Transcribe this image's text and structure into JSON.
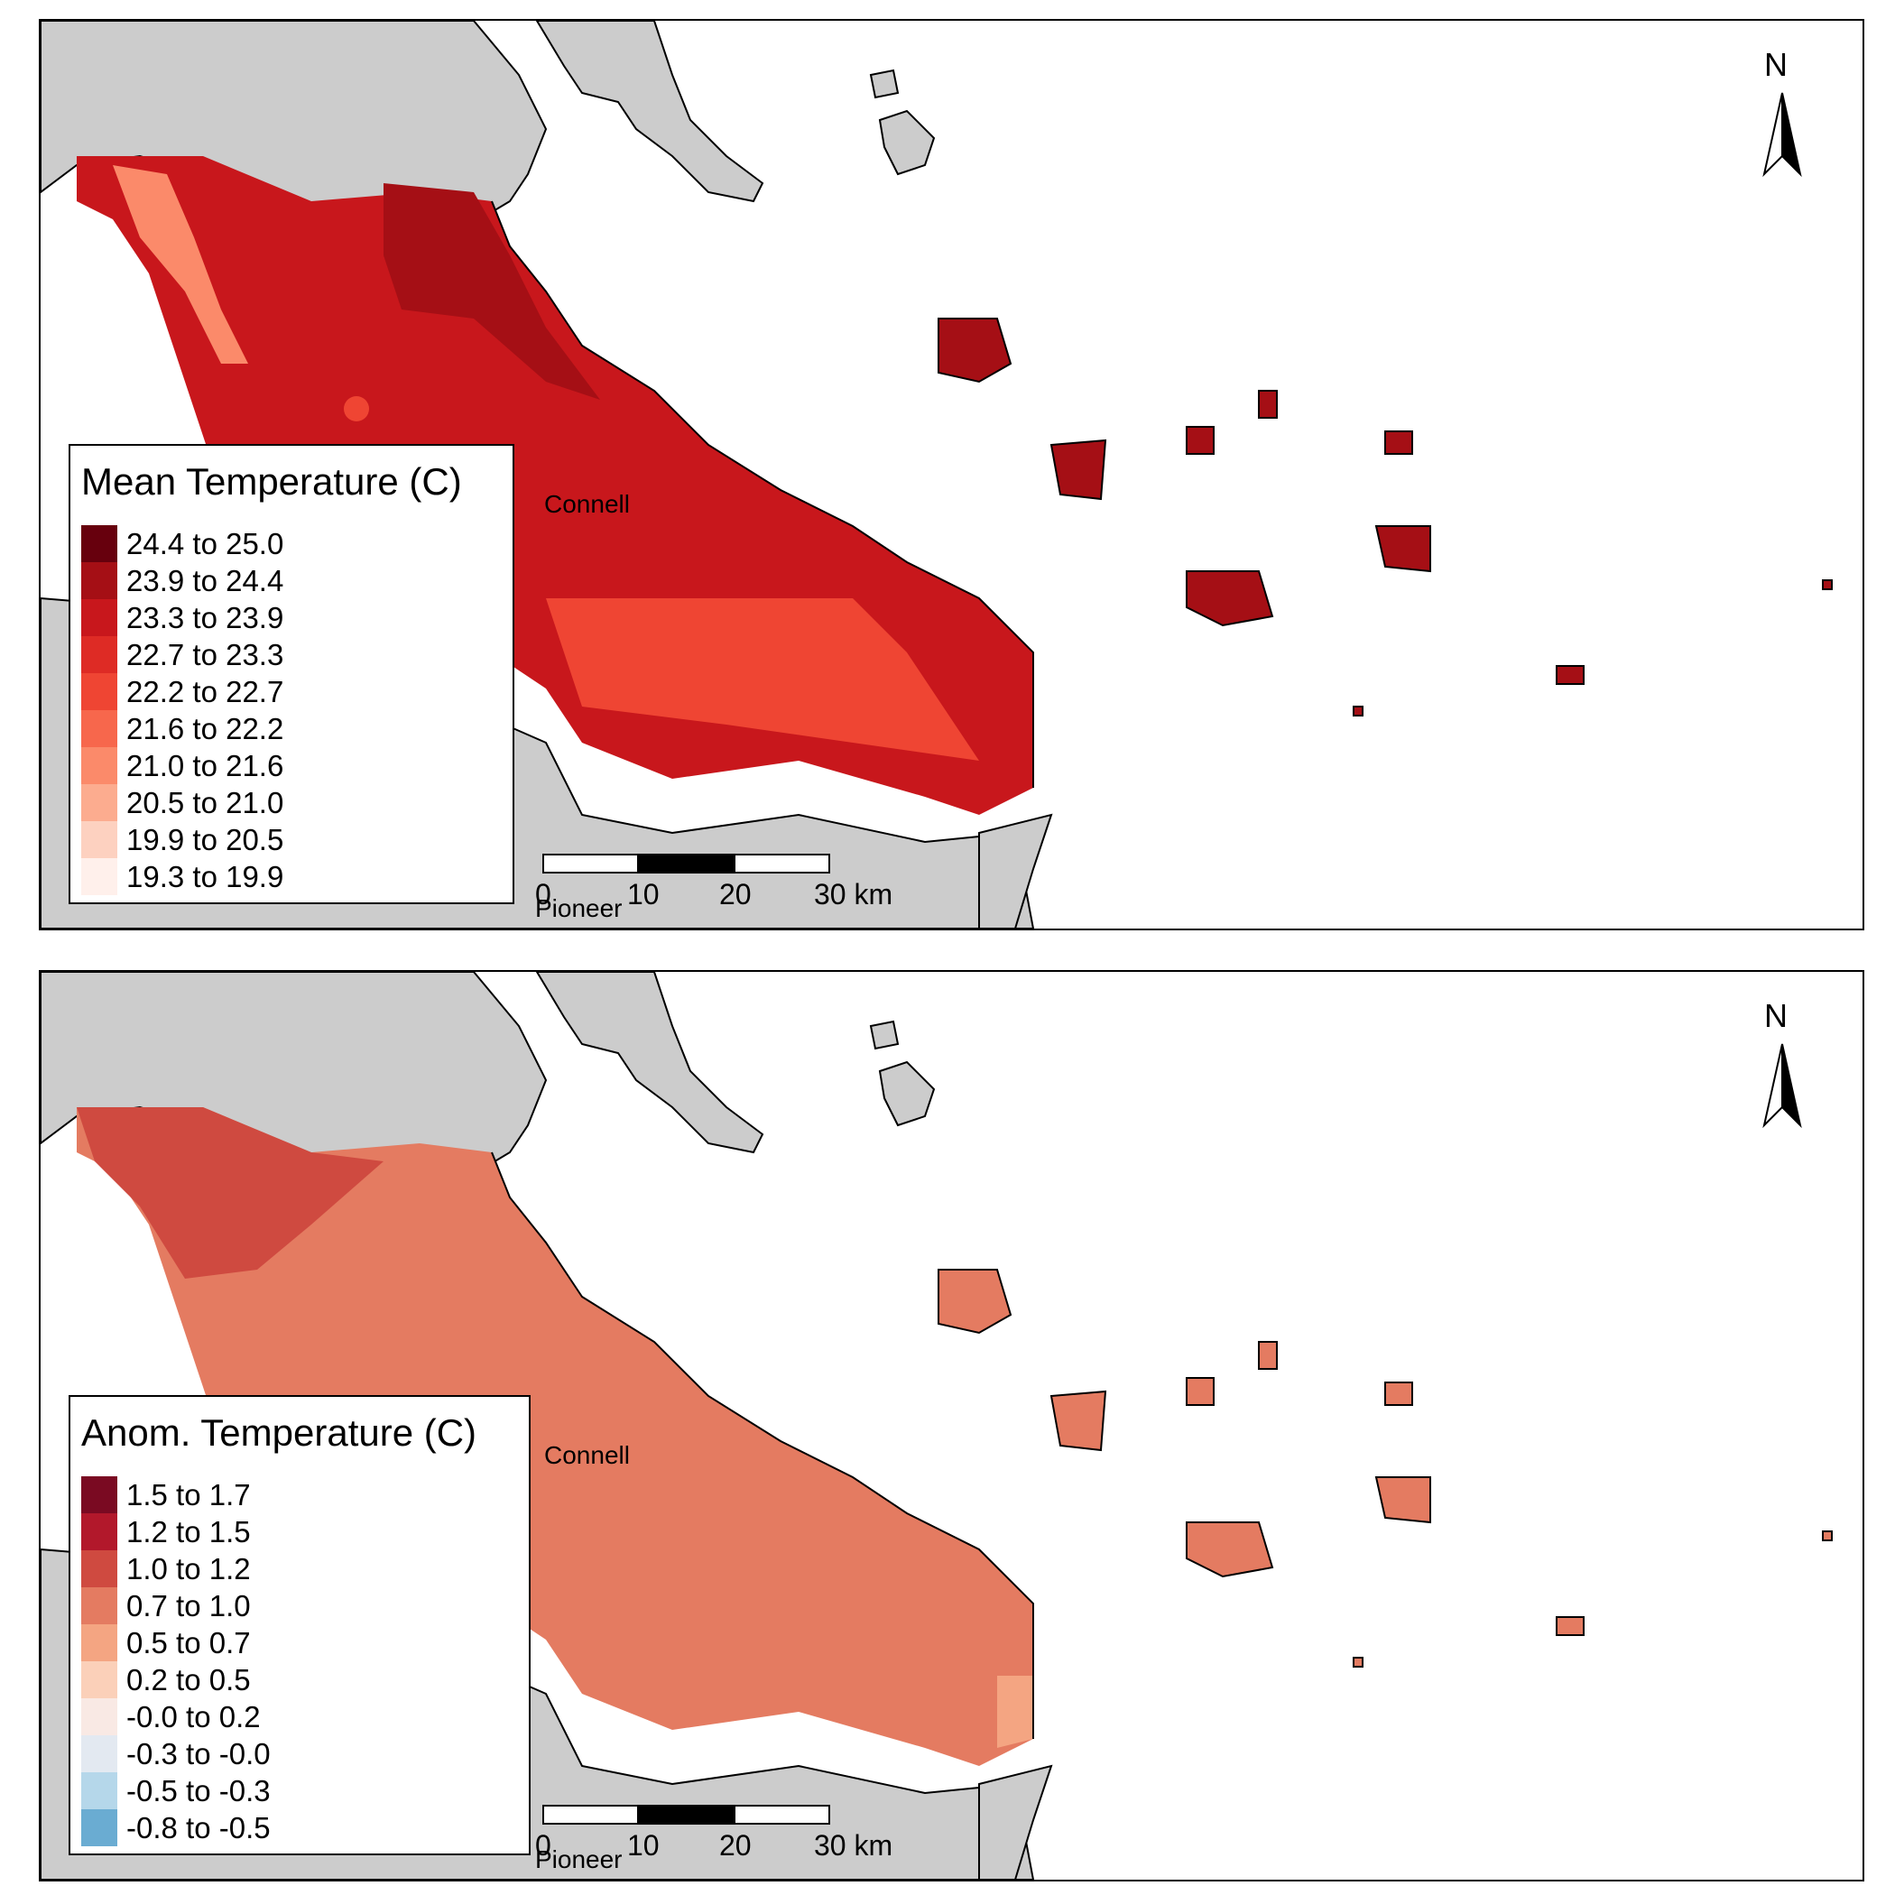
{
  "panels": [
    {
      "id": "mean",
      "legend_title": "Mean Temperature (C)",
      "legend": [
        {
          "label": "24.4 to 25.0",
          "color": "#67000d"
        },
        {
          "label": "23.9 to 24.4",
          "color": "#a50f15"
        },
        {
          "label": "23.3 to 23.9",
          "color": "#c8171c"
        },
        {
          "label": "22.7 to 23.3",
          "color": "#de2b25"
        },
        {
          "label": "22.2 to 22.7",
          "color": "#ef4533"
        },
        {
          "label": "21.6 to 22.2",
          "color": "#f7674c"
        },
        {
          "label": "21.0 to 21.6",
          "color": "#fb8a6a"
        },
        {
          "label": "20.5 to 21.0",
          "color": "#fcac8f"
        },
        {
          "label": "19.9 to 20.5",
          "color": "#fdd1c0"
        },
        {
          "label": "19.3 to 19.9",
          "color": "#fff0eb"
        }
      ],
      "region_color": "#c8171c",
      "offshore_color": "#a50f15"
    },
    {
      "id": "anom",
      "legend_title": "Anom. Temperature (C)",
      "legend": [
        {
          "label": "1.5 to 1.7",
          "color": "#7a0a22"
        },
        {
          "label": "1.2 to 1.5",
          "color": "#b2182b"
        },
        {
          "label": "1.0 to 1.2",
          "color": "#cf4a40"
        },
        {
          "label": "0.7 to 1.0",
          "color": "#e47b61"
        },
        {
          "label": "0.5 to 0.7",
          "color": "#f4a582"
        },
        {
          "label": "0.2 to 0.5",
          "color": "#fbd0b9"
        },
        {
          "label": "-0.0 to 0.2",
          "color": "#f9e9e4"
        },
        {
          "label": "-0.3 to -0.0",
          "color": "#e3e9f1"
        },
        {
          "label": "-0.5 to -0.3",
          "color": "#b5d7ea"
        },
        {
          "label": "-0.8 to -0.5",
          "color": "#6aacd2"
        }
      ],
      "region_color": "#e47b61",
      "offshore_color": "#e47b61"
    }
  ],
  "map": {
    "land_color": "#cccccc",
    "place_labels": [
      "Connell",
      "Pioneer"
    ],
    "scale_bar": {
      "labels": [
        "0",
        "10",
        "20",
        "30 km"
      ]
    },
    "north_label": "N"
  }
}
